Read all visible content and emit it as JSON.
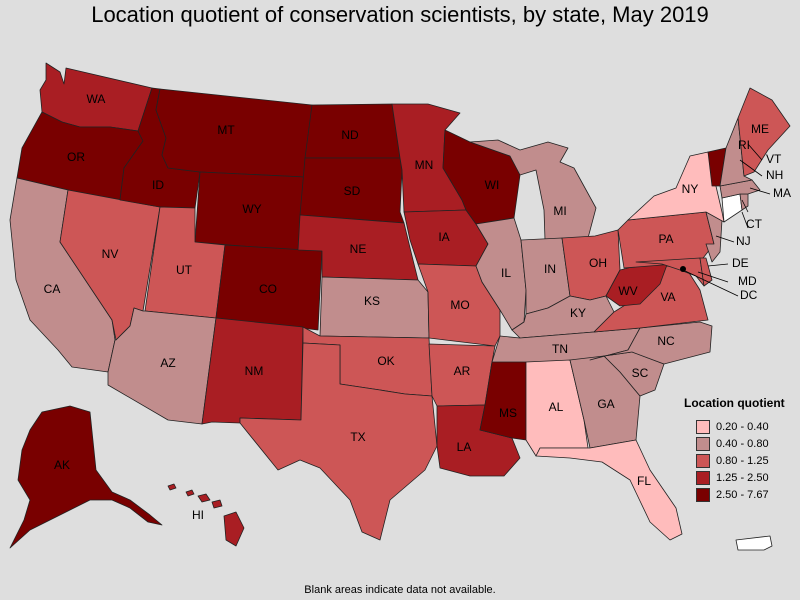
{
  "title": "Location quotient of conservation scientists, by state, May 2019",
  "footnote": "Blank areas indicate data not available.",
  "legend": {
    "title": "Location quotient",
    "items": [
      {
        "label": "0.20 - 0.40",
        "color": "#ffbcbc"
      },
      {
        "label": "0.40 - 0.80",
        "color": "#c18d8d"
      },
      {
        "label": "0.80 - 1.25",
        "color": "#cd5656"
      },
      {
        "label": "1.25 - 2.50",
        "color": "#a91e23"
      },
      {
        "label": "2.50 - 7.67",
        "color": "#790000"
      }
    ]
  },
  "states": {
    "AK": {
      "label": "AK",
      "bin": 4
    },
    "AL": {
      "label": "AL",
      "bin": 0
    },
    "AR": {
      "label": "AR",
      "bin": 2
    },
    "AZ": {
      "label": "AZ",
      "bin": 1
    },
    "CA": {
      "label": "CA",
      "bin": 1
    },
    "CO": {
      "label": "CO",
      "bin": 4
    },
    "CT": {
      "label": "CT",
      "bin": null
    },
    "DC": {
      "label": "DC",
      "bin": 4
    },
    "DE": {
      "label": "DE",
      "bin": 2
    },
    "FL": {
      "label": "FL",
      "bin": 0
    },
    "GA": {
      "label": "GA",
      "bin": 1
    },
    "HI": {
      "label": "HI",
      "bin": 3
    },
    "IA": {
      "label": "IA",
      "bin": 3
    },
    "ID": {
      "label": "ID",
      "bin": 4
    },
    "IL": {
      "label": "IL",
      "bin": 1
    },
    "IN": {
      "label": "IN",
      "bin": 1
    },
    "KS": {
      "label": "KS",
      "bin": 1
    },
    "KY": {
      "label": "KY",
      "bin": 1
    },
    "LA": {
      "label": "LA",
      "bin": 3
    },
    "MA": {
      "label": "MA",
      "bin": 1
    },
    "MD": {
      "label": "MD",
      "bin": 2
    },
    "ME": {
      "label": "ME",
      "bin": 2
    },
    "MI": {
      "label": "MI",
      "bin": 1
    },
    "MN": {
      "label": "MN",
      "bin": 3
    },
    "MO": {
      "label": "MO",
      "bin": 2
    },
    "MS": {
      "label": "MS",
      "bin": 4
    },
    "MT": {
      "label": "MT",
      "bin": 4
    },
    "NC": {
      "label": "NC",
      "bin": 1
    },
    "ND": {
      "label": "ND",
      "bin": 4
    },
    "NE": {
      "label": "NE",
      "bin": 3
    },
    "NH": {
      "label": "NH",
      "bin": 1
    },
    "NJ": {
      "label": "NJ",
      "bin": 1
    },
    "NM": {
      "label": "NM",
      "bin": 3
    },
    "NV": {
      "label": "NV",
      "bin": 2
    },
    "NY": {
      "label": "NY",
      "bin": 0
    },
    "OH": {
      "label": "OH",
      "bin": 2
    },
    "OK": {
      "label": "OK",
      "bin": 2
    },
    "OR": {
      "label": "OR",
      "bin": 4
    },
    "PA": {
      "label": "PA",
      "bin": 2
    },
    "PR": {
      "label": "",
      "bin": null
    },
    "RI": {
      "label": "RI",
      "bin": 1
    },
    "SC": {
      "label": "SC",
      "bin": 1
    },
    "SD": {
      "label": "SD",
      "bin": 4
    },
    "TN": {
      "label": "TN",
      "bin": 1
    },
    "TX": {
      "label": "TX",
      "bin": 2
    },
    "UT": {
      "label": "UT",
      "bin": 2
    },
    "VA": {
      "label": "VA",
      "bin": 2
    },
    "VT": {
      "label": "VT",
      "bin": 4
    },
    "WA": {
      "label": "WA",
      "bin": 3
    },
    "WI": {
      "label": "WI",
      "bin": 4
    },
    "WV": {
      "label": "WV",
      "bin": 3
    },
    "WY": {
      "label": "WY",
      "bin": 4
    }
  }
}
